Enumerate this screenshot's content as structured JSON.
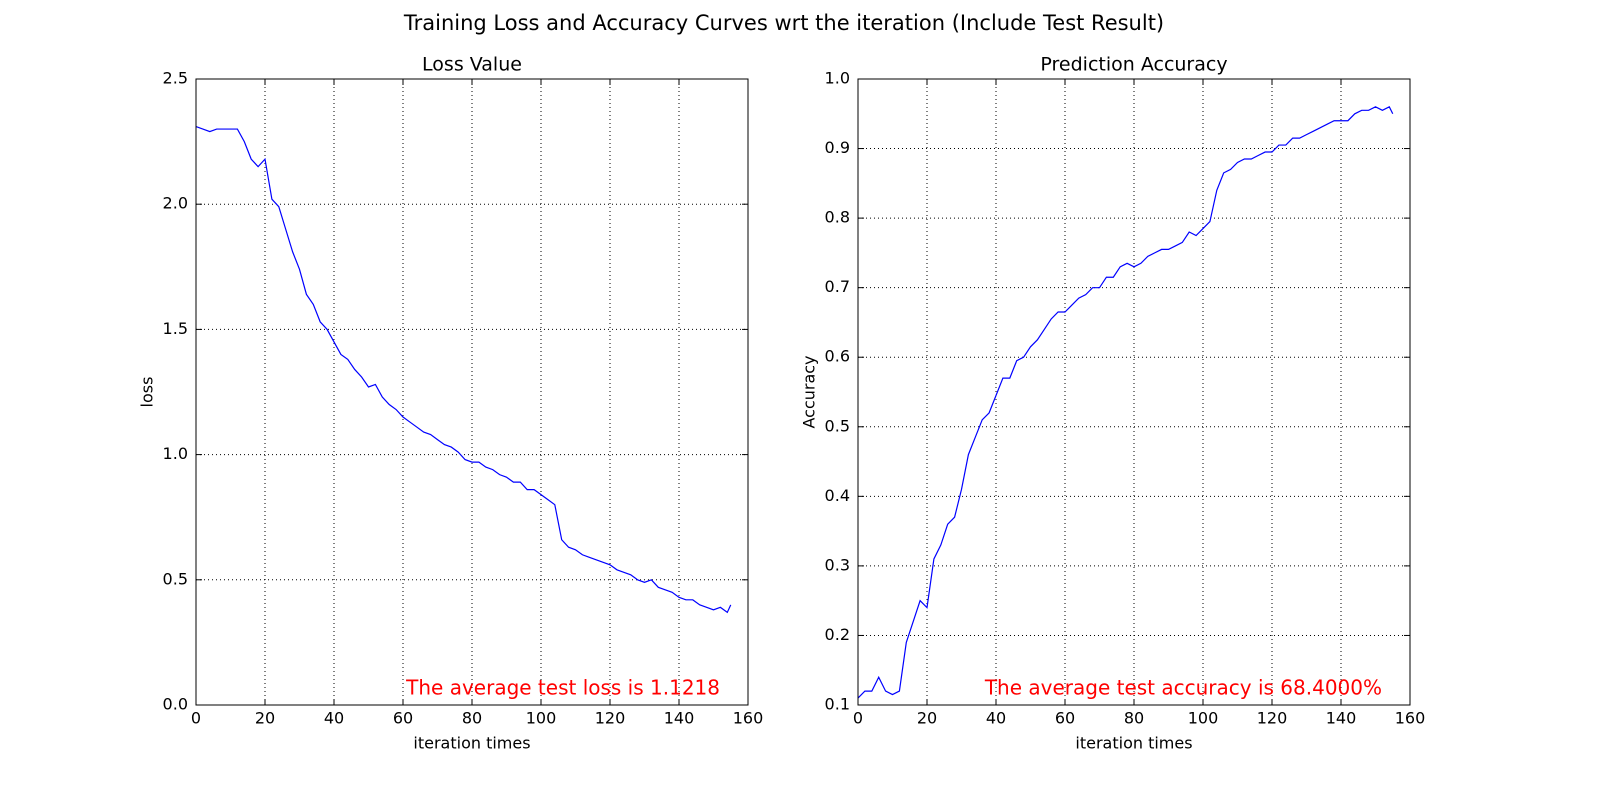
{
  "title": "Training Loss and Accuracy Curves wrt the iteration (Include Test Result)",
  "chart_data": [
    {
      "type": "line",
      "title": "Loss Value",
      "xlabel": "iteration times",
      "ylabel": "loss",
      "annotation": "The average test loss is 1.1218",
      "annotation_color": "#ff0000",
      "color": "#0000ff",
      "grid": true,
      "xlim": [
        0,
        160
      ],
      "xticks": [
        0,
        20,
        40,
        60,
        80,
        100,
        120,
        140,
        160
      ],
      "ylim": [
        0,
        2.5
      ],
      "yticks": [
        {
          "value": 0,
          "label": "0.0"
        },
        0.5,
        {
          "value": 1,
          "label": "1.0"
        },
        1.5,
        {
          "value": 2,
          "label": "2.0"
        },
        2.5
      ],
      "x": [
        0,
        2,
        4,
        6,
        8,
        10,
        12,
        14,
        16,
        18,
        20,
        22,
        24,
        26,
        28,
        30,
        32,
        34,
        36,
        38,
        40,
        42,
        44,
        46,
        48,
        50,
        52,
        54,
        56,
        58,
        60,
        62,
        64,
        66,
        68,
        70,
        72,
        74,
        76,
        78,
        80,
        82,
        84,
        86,
        88,
        90,
        92,
        94,
        96,
        98,
        100,
        102,
        104,
        106,
        108,
        110,
        112,
        114,
        116,
        118,
        120,
        122,
        124,
        126,
        128,
        130,
        132,
        134,
        136,
        138,
        140,
        142,
        144,
        146,
        148,
        150,
        152,
        154,
        155
      ],
      "values": [
        2.31,
        2.3,
        2.29,
        2.3,
        2.3,
        2.3,
        2.3,
        2.25,
        2.18,
        2.15,
        2.18,
        2.02,
        1.99,
        1.9,
        1.81,
        1.74,
        1.64,
        1.6,
        1.53,
        1.5,
        1.45,
        1.4,
        1.38,
        1.34,
        1.31,
        1.27,
        1.28,
        1.23,
        1.2,
        1.18,
        1.15,
        1.13,
        1.11,
        1.09,
        1.08,
        1.06,
        1.04,
        1.03,
        1.01,
        0.98,
        0.97,
        0.97,
        0.95,
        0.94,
        0.92,
        0.91,
        0.89,
        0.89,
        0.86,
        0.86,
        0.84,
        0.82,
        0.8,
        0.66,
        0.63,
        0.62,
        0.6,
        0.59,
        0.58,
        0.57,
        0.56,
        0.54,
        0.53,
        0.52,
        0.5,
        0.49,
        0.5,
        0.47,
        0.46,
        0.45,
        0.43,
        0.42,
        0.42,
        0.4,
        0.39,
        0.38,
        0.39,
        0.37,
        0.4
      ]
    },
    {
      "type": "line",
      "title": "Prediction Accuracy",
      "xlabel": "iteration times",
      "ylabel": "Accuracy",
      "annotation": "The average test accuracy is 68.4000%",
      "annotation_color": "#ff0000",
      "color": "#0000ff",
      "grid": true,
      "xlim": [
        0,
        160
      ],
      "xticks": [
        0,
        20,
        40,
        60,
        80,
        100,
        120,
        140,
        160
      ],
      "ylim": [
        0.1,
        1.0
      ],
      "yticks": [
        0.1,
        0.2,
        0.3,
        0.4,
        0.5,
        0.6,
        0.7,
        0.8,
        0.9,
        {
          "value": 1,
          "label": "1.0"
        }
      ],
      "x": [
        0,
        2,
        4,
        6,
        8,
        10,
        12,
        14,
        16,
        18,
        20,
        22,
        24,
        26,
        28,
        30,
        32,
        34,
        36,
        38,
        40,
        42,
        44,
        46,
        48,
        50,
        52,
        54,
        56,
        58,
        60,
        62,
        64,
        66,
        68,
        70,
        72,
        74,
        76,
        78,
        80,
        82,
        84,
        86,
        88,
        90,
        92,
        94,
        96,
        98,
        100,
        102,
        104,
        106,
        108,
        110,
        112,
        114,
        116,
        118,
        120,
        122,
        124,
        126,
        128,
        130,
        132,
        134,
        136,
        138,
        140,
        142,
        144,
        146,
        148,
        150,
        152,
        154,
        155
      ],
      "values": [
        0.11,
        0.12,
        0.12,
        0.14,
        0.12,
        0.115,
        0.12,
        0.19,
        0.22,
        0.25,
        0.24,
        0.31,
        0.33,
        0.36,
        0.37,
        0.41,
        0.46,
        0.485,
        0.51,
        0.52,
        0.545,
        0.57,
        0.57,
        0.595,
        0.6,
        0.615,
        0.625,
        0.64,
        0.655,
        0.665,
        0.665,
        0.675,
        0.685,
        0.69,
        0.7,
        0.7,
        0.715,
        0.715,
        0.73,
        0.735,
        0.73,
        0.735,
        0.745,
        0.75,
        0.755,
        0.755,
        0.76,
        0.765,
        0.78,
        0.775,
        0.785,
        0.795,
        0.84,
        0.865,
        0.87,
        0.88,
        0.885,
        0.885,
        0.89,
        0.895,
        0.895,
        0.905,
        0.905,
        0.915,
        0.915,
        0.92,
        0.925,
        0.93,
        0.935,
        0.94,
        0.94,
        0.94,
        0.95,
        0.955,
        0.955,
        0.96,
        0.955,
        0.96,
        0.95
      ]
    }
  ]
}
